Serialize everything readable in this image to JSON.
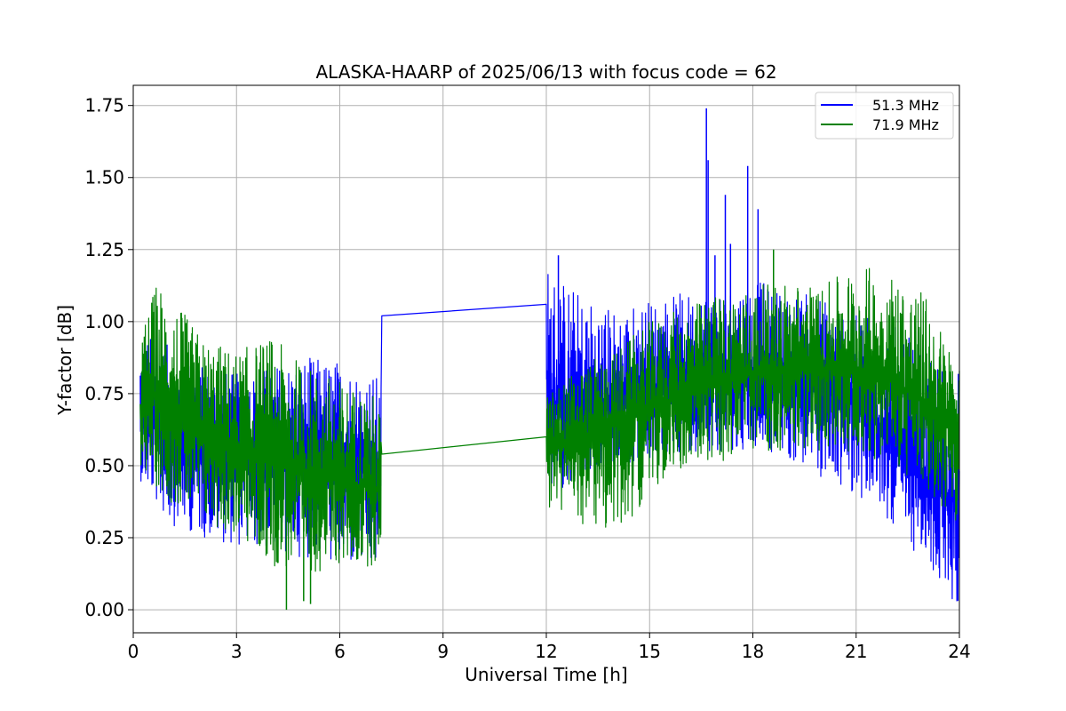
{
  "chart_data": {
    "type": "line",
    "title": "ALASKA-HAARP of 2025/06/13 with focus code = 62",
    "xlabel": "Universal Time [h]",
    "ylabel": "Y-factor [dB]",
    "xlim": [
      0,
      24
    ],
    "ylim": [
      -0.08,
      1.82
    ],
    "xticks": [
      0,
      3,
      6,
      9,
      12,
      15,
      18,
      21,
      24
    ],
    "yticks": [
      0.0,
      0.25,
      0.5,
      0.75,
      1.0,
      1.25,
      1.5,
      1.75
    ],
    "xtick_labels": [
      "0",
      "3",
      "6",
      "9",
      "12",
      "15",
      "18",
      "21",
      "24"
    ],
    "ytick_labels": [
      "0.00",
      "0.25",
      "0.50",
      "0.75",
      "1.00",
      "1.25",
      "1.50",
      "1.75"
    ],
    "grid": true,
    "legend_position": "top-right",
    "series": [
      {
        "name": "51.3 MHz",
        "color": "#0000ff",
        "profile_x": [
          0.2,
          1,
          2,
          3,
          4,
          5,
          6,
          7,
          7.2,
          7.22,
          12.0,
          12.02,
          13,
          14,
          15,
          16,
          17,
          18,
          19,
          20,
          21,
          22,
          23,
          24
        ],
        "center": [
          0.65,
          0.62,
          0.58,
          0.55,
          0.55,
          0.53,
          0.5,
          0.48,
          0.48,
          1.02,
          1.06,
          0.7,
          0.68,
          0.7,
          0.74,
          0.78,
          0.8,
          0.8,
          0.8,
          0.78,
          0.72,
          0.6,
          0.45,
          0.38
        ],
        "upper": [
          0.97,
          0.92,
          0.85,
          0.82,
          0.85,
          0.88,
          0.87,
          0.82,
          0.8,
          1.02,
          1.06,
          1.2,
          1.1,
          1.05,
          1.08,
          1.1,
          1.12,
          1.15,
          1.1,
          1.1,
          1.05,
          1.0,
          0.9,
          0.85
        ],
        "lower": [
          0.45,
          0.3,
          0.25,
          0.22,
          0.2,
          0.18,
          0.15,
          0.12,
          0.15,
          1.02,
          1.06,
          0.4,
          0.45,
          0.5,
          0.5,
          0.55,
          0.55,
          0.55,
          0.52,
          0.45,
          0.4,
          0.3,
          0.15,
          0.0
        ],
        "spikes": [
          [
            16.65,
            1.74
          ],
          [
            16.7,
            1.56
          ],
          [
            17.2,
            1.44
          ],
          [
            17.85,
            1.54
          ],
          [
            17.35,
            1.27
          ],
          [
            18.15,
            1.39
          ],
          [
            16.9,
            1.23
          ],
          [
            12.35,
            1.23
          ]
        ]
      },
      {
        "name": "71.9 MHz",
        "color": "#008000",
        "profile_x": [
          0.2,
          0.7,
          1,
          2,
          3,
          4,
          5,
          6,
          7,
          7.2,
          7.22,
          12.0,
          12.02,
          13,
          14,
          15,
          16,
          17,
          18,
          19,
          20,
          21,
          22,
          23,
          24
        ],
        "center": [
          0.7,
          0.75,
          0.7,
          0.6,
          0.55,
          0.52,
          0.48,
          0.45,
          0.42,
          0.42,
          0.54,
          0.6,
          0.55,
          0.6,
          0.65,
          0.7,
          0.75,
          0.8,
          0.82,
          0.83,
          0.84,
          0.84,
          0.8,
          0.72,
          0.6
        ],
        "upper": [
          0.95,
          1.15,
          1.1,
          0.95,
          0.9,
          0.95,
          0.85,
          0.8,
          0.75,
          0.7,
          0.54,
          0.6,
          0.75,
          0.85,
          0.9,
          1.0,
          1.05,
          1.1,
          1.12,
          1.15,
          1.12,
          1.2,
          1.18,
          1.1,
          0.85
        ],
        "lower": [
          0.5,
          0.42,
          0.38,
          0.3,
          0.25,
          0.15,
          0.12,
          0.15,
          0.15,
          0.15,
          0.54,
          0.6,
          0.35,
          0.3,
          0.25,
          0.4,
          0.5,
          0.5,
          0.55,
          0.55,
          0.55,
          0.55,
          0.5,
          0.4,
          0.3
        ],
        "spikes": [
          [
            4.45,
            0.0
          ],
          [
            5.15,
            0.02
          ],
          [
            18.6,
            1.25
          ],
          [
            4.95,
            0.03
          ]
        ]
      }
    ]
  }
}
